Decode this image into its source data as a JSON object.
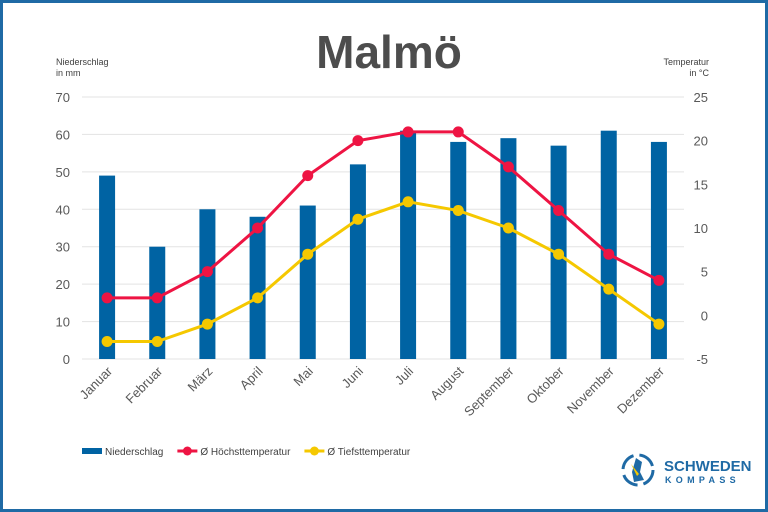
{
  "chart_data": {
    "type": "bar+line",
    "title": "Malmö",
    "categories": [
      "Januar",
      "Februar",
      "März",
      "April",
      "Mai",
      "Juni",
      "Juli",
      "August",
      "September",
      "Oktober",
      "November",
      "Dezember"
    ],
    "y_left": {
      "label_line1": "Niederschlag",
      "label_line2": "in mm",
      "range": [
        0,
        70
      ],
      "ticks": [
        0,
        10,
        20,
        30,
        40,
        50,
        60,
        70
      ]
    },
    "y_right": {
      "label_line1": "Temperatur",
      "label_line2": "in °C",
      "range": [
        -5,
        25
      ],
      "ticks": [
        -5,
        0,
        5,
        10,
        15,
        20,
        25
      ]
    },
    "grid": true,
    "legend_placement": "bottom-left",
    "series": [
      {
        "name": "Niederschlag",
        "type": "bar",
        "axis": "left",
        "color": "#0063a3",
        "values": [
          49,
          30,
          40,
          38,
          41,
          52,
          61,
          58,
          59,
          57,
          61,
          58
        ]
      },
      {
        "name": "Ø Höchsttemperatur",
        "type": "line",
        "axis": "right",
        "color": "#ee1443",
        "values": [
          2,
          2,
          5,
          10,
          16,
          20,
          21,
          21,
          17,
          12,
          7,
          4
        ]
      },
      {
        "name": "Ø Tiefsttemperatur",
        "type": "line",
        "axis": "right",
        "color": "#f5c800",
        "values": [
          -3,
          -3,
          -1,
          2,
          7,
          11,
          13,
          12,
          10,
          7,
          3,
          -1
        ]
      }
    ]
  },
  "logo": {
    "line1": "SCHWEDEN",
    "line2": "KOMPASS",
    "color": "#1f6aa5"
  }
}
